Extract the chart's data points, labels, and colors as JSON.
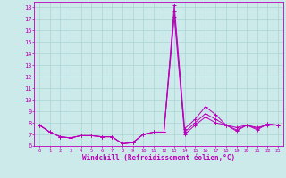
{
  "xlabel": "Windchill (Refroidissement éolien,°C)",
  "ylabel": "",
  "background_color": "#cceaea",
  "grid_color": "#aad4d4",
  "line_color": "#bb00bb",
  "xlim": [
    -0.5,
    23.5
  ],
  "ylim": [
    6,
    18.5
  ],
  "yticks": [
    6,
    7,
    8,
    9,
    10,
    11,
    12,
    13,
    14,
    15,
    16,
    17,
    18
  ],
  "xticks": [
    0,
    1,
    2,
    3,
    4,
    5,
    6,
    7,
    8,
    9,
    10,
    11,
    12,
    13,
    14,
    15,
    16,
    17,
    18,
    19,
    20,
    21,
    22,
    23
  ],
  "series": [
    [
      7.8,
      7.2,
      6.8,
      6.7,
      6.9,
      6.9,
      6.8,
      6.8,
      6.2,
      6.3,
      7.0,
      7.2,
      7.2,
      18.2,
      7.5,
      8.3,
      9.4,
      8.7,
      7.8,
      7.6,
      7.8,
      7.6,
      7.8,
      7.8
    ],
    [
      7.8,
      7.2,
      6.8,
      6.7,
      6.9,
      6.9,
      6.8,
      6.8,
      6.2,
      6.3,
      7.0,
      7.2,
      7.2,
      17.7,
      7.2,
      8.0,
      8.8,
      8.3,
      7.8,
      7.4,
      7.8,
      7.5,
      7.9,
      7.8
    ],
    [
      7.8,
      7.2,
      6.8,
      6.7,
      6.9,
      6.9,
      6.8,
      6.8,
      6.2,
      6.3,
      7.0,
      7.2,
      7.2,
      17.2,
      7.0,
      7.8,
      8.5,
      8.0,
      7.8,
      7.3,
      7.8,
      7.4,
      7.9,
      7.8
    ]
  ]
}
